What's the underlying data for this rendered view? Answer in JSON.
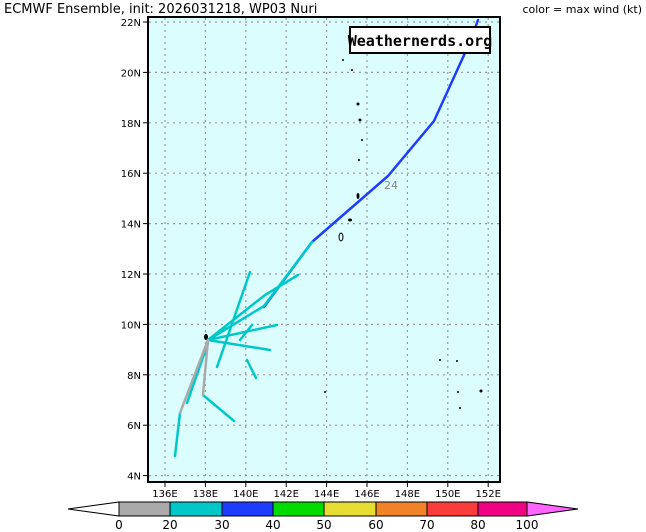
{
  "title": "ECMWF Ensemble, init: 2026031218, WP03 Nuri",
  "legend_note": "color = max wind (kt)",
  "watermark": "Weathernerds.org",
  "lat_labels": [
    "22N",
    "20N",
    "18N",
    "16N",
    "14N",
    "12N",
    "10N",
    "8N",
    "6N",
    "4N"
  ],
  "lon_labels": [
    "136E",
    "138E",
    "140E",
    "142E",
    "144E",
    "146E",
    "148E",
    "150E",
    "152E"
  ],
  "forecast_hour_label": "24",
  "colorbar": {
    "labels": [
      "0",
      "20",
      "30",
      "40",
      "50",
      "60",
      "70",
      "80",
      "100"
    ],
    "colors": [
      "#aaaaaa",
      "#00c8c8",
      "#1e3cff",
      "#00dc00",
      "#e6dc32",
      "#f08228",
      "#fa3c3c",
      "#f00082",
      "#ff64ff"
    ]
  }
}
